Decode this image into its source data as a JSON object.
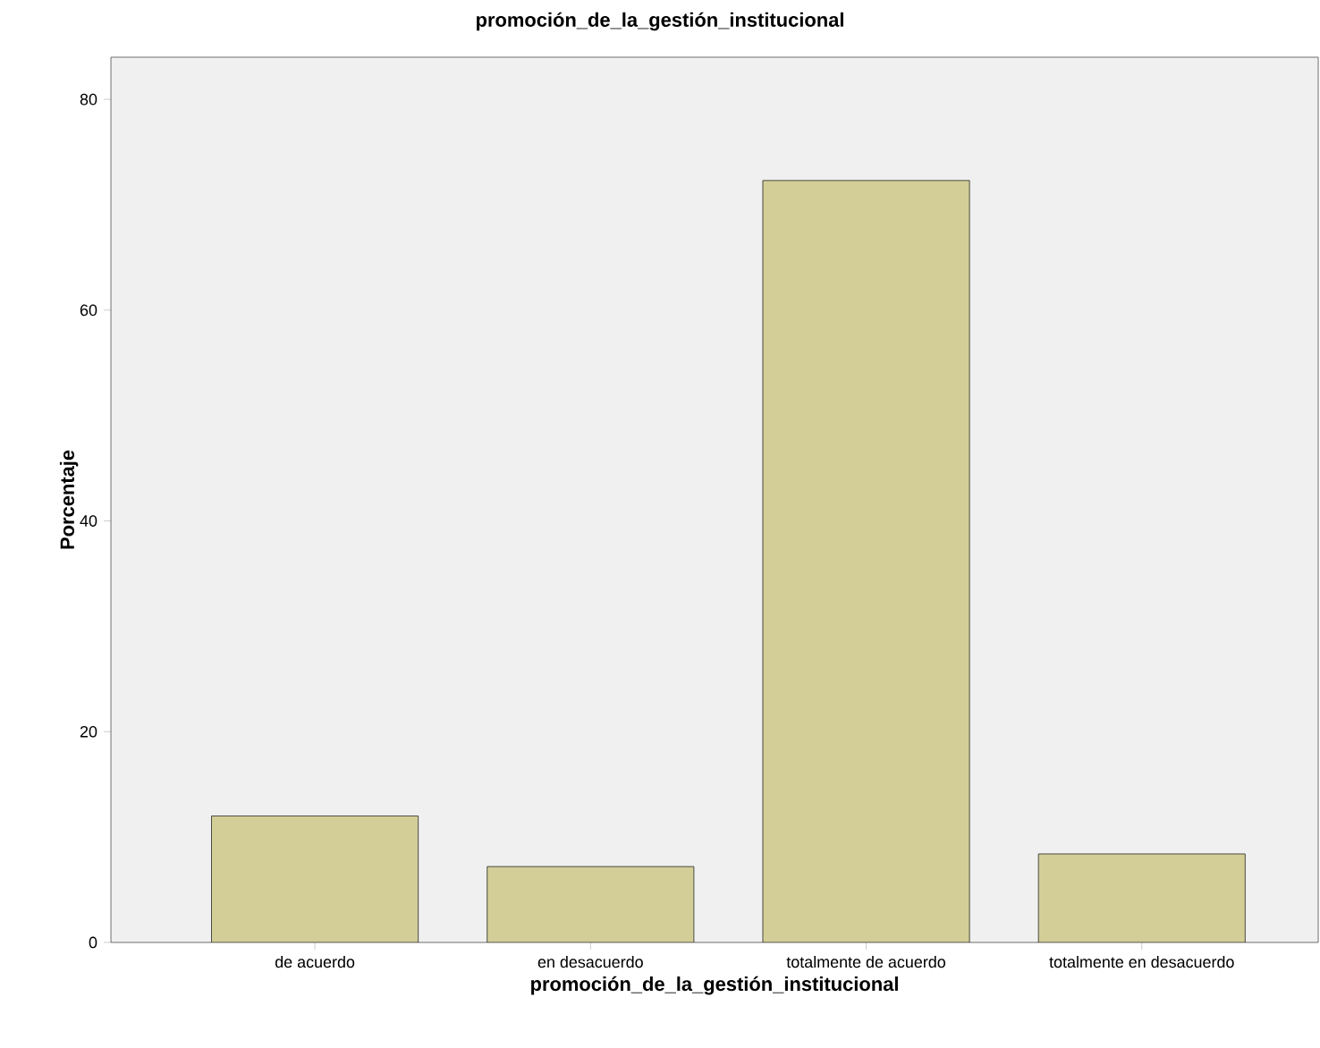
{
  "chart_data": {
    "type": "bar",
    "title": "promoción_de_la_gestión_institucional",
    "xlabel": "promoción_de_la_gestión_institucional",
    "ylabel": "Porcentaje",
    "categories": [
      "de acuerdo",
      "en desacuerdo",
      "totalmente de acuerdo",
      "totalmente en desacuerdo"
    ],
    "values": [
      12.0,
      7.2,
      72.3,
      8.4
    ],
    "color": "#d3ce97",
    "ylim": [
      0,
      84
    ],
    "yticks": [
      0,
      20,
      40,
      60,
      80
    ]
  }
}
